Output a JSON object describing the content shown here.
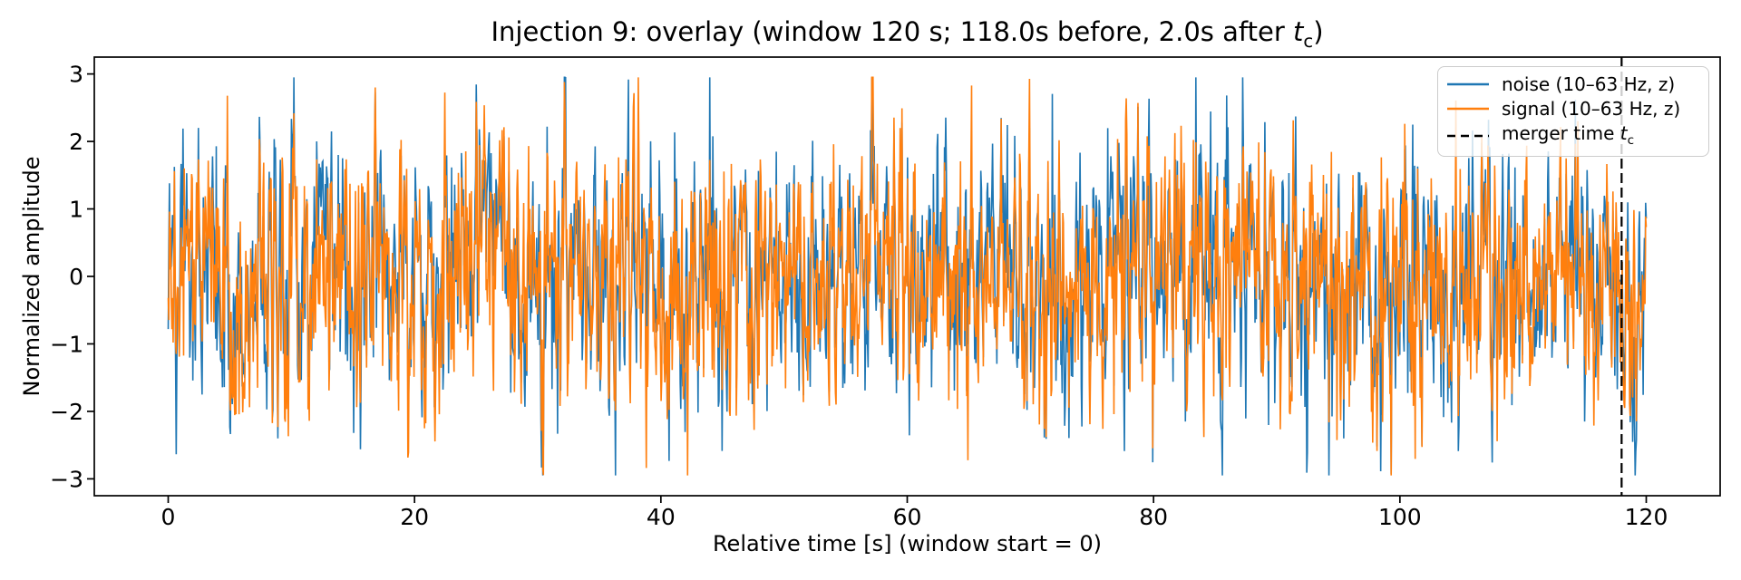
{
  "figure": {
    "background": "#ffffff",
    "text_color": "#000000"
  },
  "chart_data": {
    "type": "line",
    "title": "Injection 9: overlay (window 120 s; 118.0s before, 2.0s after tc)",
    "title_parts": {
      "prefix": "Injection 9: overlay (window 120 s; 118.0s before, 2.0s after ",
      "var": "t",
      "sub": "c",
      "suffix": ")"
    },
    "xlabel": "Relative time [s] (window start = 0)",
    "ylabel": "Normalized amplitude",
    "xlim": [
      -6,
      126
    ],
    "ylim": [
      -3.25,
      3.25
    ],
    "xticks": [
      0,
      20,
      40,
      60,
      80,
      100,
      120
    ],
    "xtick_labels": [
      "0",
      "20",
      "40",
      "60",
      "80",
      "100",
      "120"
    ],
    "yticks": [
      3,
      2,
      1,
      0,
      -1,
      -2,
      -3
    ],
    "ytick_labels": [
      "3",
      "2",
      "1",
      "0",
      "−1",
      "−2",
      "−3"
    ],
    "grid": false,
    "legend_position": "upper right",
    "series": [
      {
        "name": "noise",
        "label": "noise (10–63 Hz, z)",
        "color": "#1f77b4",
        "description": "z-scored bandpassed detector noise, dense oscillation filling the window",
        "t_start": 0,
        "t_end": 120,
        "mean": 0,
        "std": 1,
        "peak_abs": 2.95
      },
      {
        "name": "signal",
        "label": "signal (10–63 Hz, z)",
        "color": "#ff7f0e",
        "description": "z-scored bandpassed noise + injected signal, overlaps noise trace",
        "t_start": 0,
        "t_end": 120,
        "mean": 0,
        "std": 1,
        "peak_abs": 2.95,
        "correlation_with_noise": 0.7
      }
    ],
    "merger_line": {
      "time_s": 118,
      "color": "#000000",
      "style": "dashed",
      "label": "merger time tc",
      "label_prefix": "merger time ",
      "label_var": "t",
      "label_sub": "c"
    },
    "window": {
      "window_s": 120,
      "before_s": 118.0,
      "after_s": 2.0,
      "injection": 9
    }
  }
}
